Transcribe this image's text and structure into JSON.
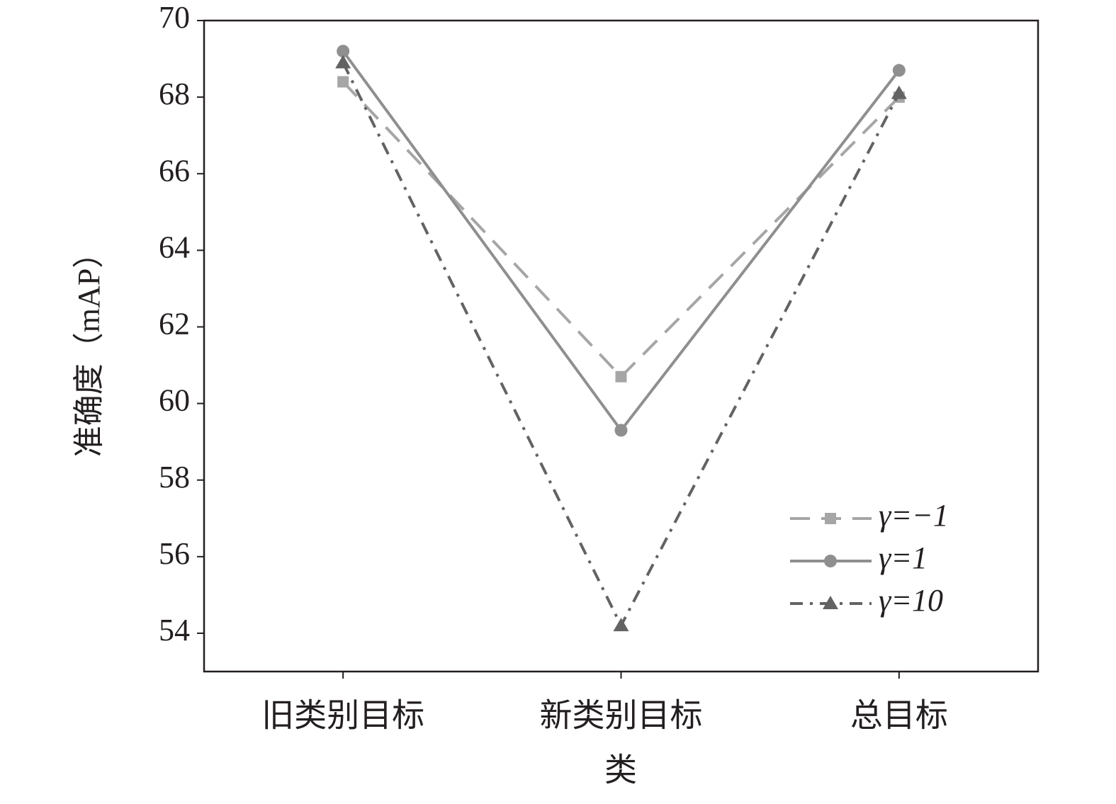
{
  "chart_data": {
    "type": "line",
    "categories": [
      "旧类别目标",
      "新类别目标",
      "总目标"
    ],
    "xlabel": "类",
    "ylabel": "准确度（mAP）",
    "ylim": [
      53,
      70
    ],
    "yticks": [
      54,
      56,
      58,
      60,
      62,
      64,
      66,
      68,
      70
    ],
    "legend": "lower right",
    "series": [
      {
        "name": "γ=−1",
        "color": "#a6a6a6",
        "dash": "dashed",
        "marker": "square",
        "values": [
          68.4,
          60.7,
          68.0
        ]
      },
      {
        "name": "γ=1",
        "color": "#8f8f8f",
        "dash": "solid",
        "marker": "circle",
        "values": [
          69.2,
          59.3,
          68.7
        ]
      },
      {
        "name": "γ=10",
        "color": "#636363",
        "dash": "dashdot",
        "marker": "triangle",
        "values": [
          68.9,
          54.2,
          68.1
        ]
      }
    ]
  }
}
